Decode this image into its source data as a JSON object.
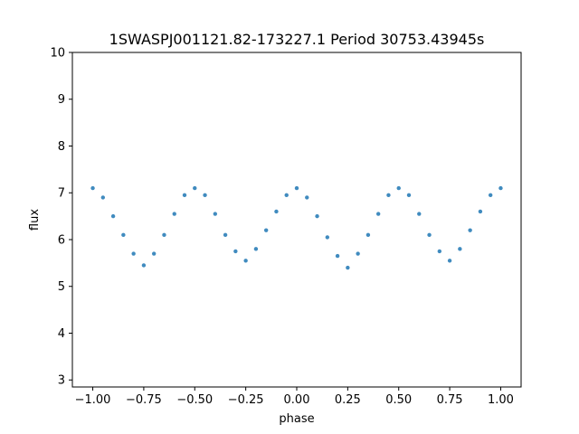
{
  "chart_data": {
    "type": "scatter",
    "title": "1SWASPJ001121.82-173227.1 Period 30753.43945s",
    "xlabel": "phase",
    "ylabel": "flux",
    "xlim": [
      -1.1,
      1.1
    ],
    "ylim": [
      2.85,
      10.0
    ],
    "xticks": [
      -1.0,
      -0.75,
      -0.5,
      -0.25,
      0.0,
      0.25,
      0.5,
      0.75,
      1.0
    ],
    "xtick_labels": [
      "−1.00",
      "−0.75",
      "−0.50",
      "−0.25",
      "0.00",
      "0.25",
      "0.50",
      "0.75",
      "1.00"
    ],
    "yticks": [
      3,
      4,
      5,
      6,
      7,
      8,
      9,
      10
    ],
    "ytick_labels": [
      "3",
      "4",
      "5",
      "6",
      "7",
      "8",
      "9",
      "10"
    ],
    "grid": false,
    "point_color": "#1f77b4",
    "series": [
      {
        "x": [
          -1.0,
          -0.95,
          -0.9,
          -0.85,
          -0.8,
          -0.75,
          -0.7,
          -0.65,
          -0.6,
          -0.55,
          -0.5,
          -0.45,
          -0.4,
          -0.35,
          -0.3,
          -0.25,
          -0.2,
          -0.15,
          -0.1,
          -0.05,
          0.0,
          0.05,
          0.1,
          0.15,
          0.2,
          0.25,
          0.3,
          0.35,
          0.4,
          0.45,
          0.5,
          0.55,
          0.6,
          0.65,
          0.7,
          0.75,
          0.8,
          0.85,
          0.9,
          0.95,
          1.0
        ],
        "y": [
          7.1,
          6.9,
          6.5,
          6.1,
          5.7,
          5.45,
          5.7,
          6.1,
          6.55,
          6.95,
          7.1,
          6.95,
          6.55,
          6.1,
          5.75,
          5.55,
          5.8,
          6.2,
          6.6,
          6.95,
          7.1,
          6.9,
          6.5,
          6.05,
          5.65,
          5.4,
          5.7,
          6.1,
          6.55,
          6.95,
          7.1,
          6.95,
          6.55,
          6.1,
          5.75,
          5.55,
          5.8,
          6.2,
          6.6,
          6.95,
          7.1
        ]
      }
    ]
  }
}
